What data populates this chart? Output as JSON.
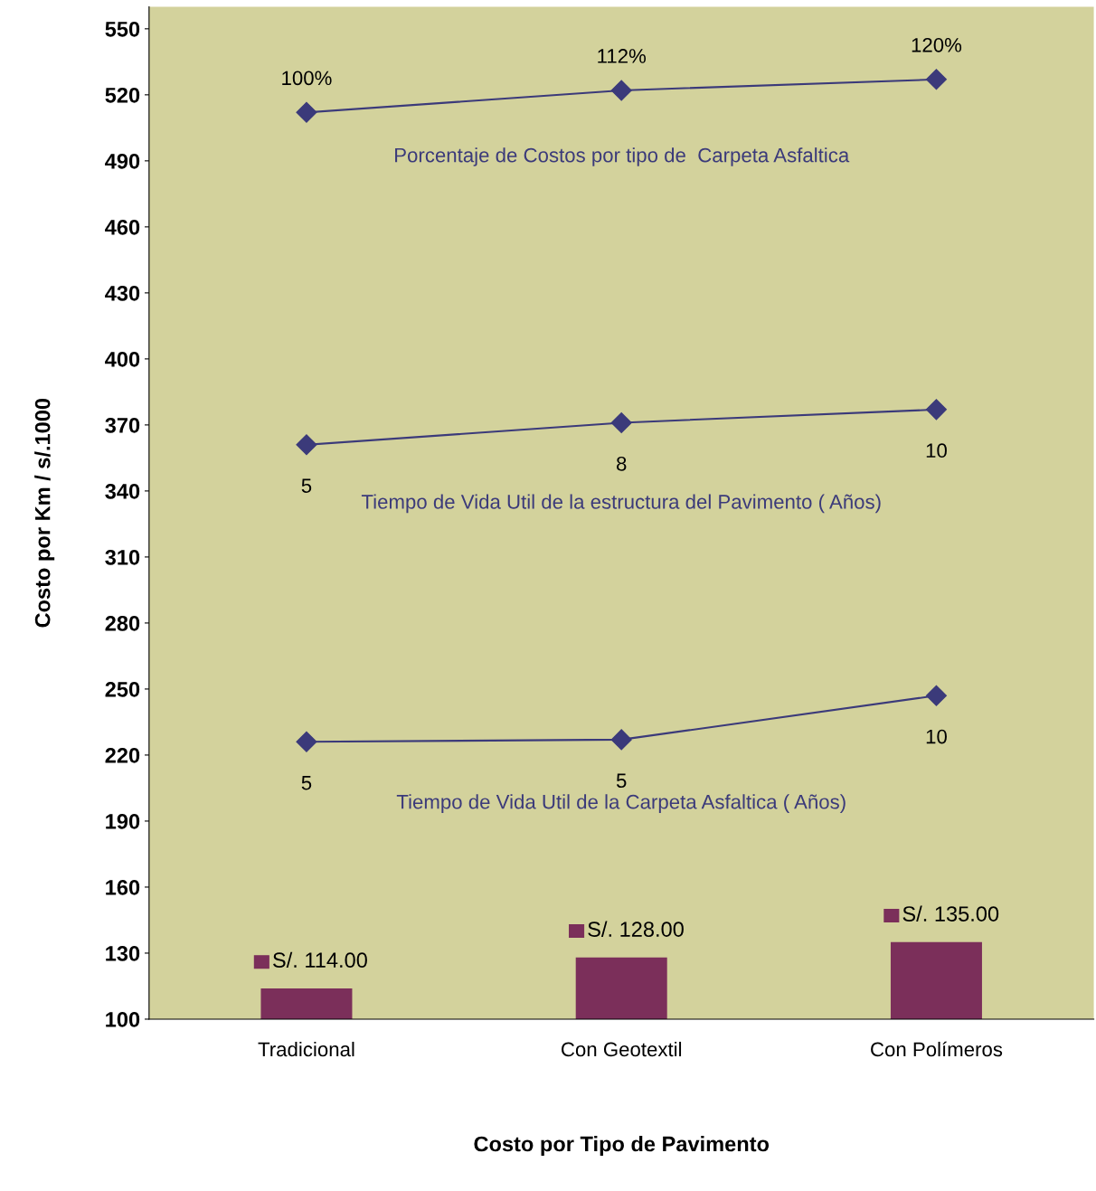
{
  "chart_data": {
    "type": "bar",
    "xlabel": "Costo por Tipo de Pavimento",
    "ylabel": "Costo por Km / s/.1000",
    "categories": [
      "Tradicional",
      "Con Geotextil",
      "Con Polímeros"
    ],
    "ylim": [
      100,
      560
    ],
    "yticks": [
      100,
      130,
      160,
      190,
      220,
      250,
      280,
      310,
      340,
      370,
      400,
      430,
      460,
      490,
      520,
      550
    ],
    "grid": false,
    "marker": "diamond",
    "line_style": "solid",
    "series": [
      {
        "color": "#7b2f5a",
        "values": [
          114,
          128,
          135
        ],
        "value_labels": [
          "S/. 114.00",
          "S/. 128.00",
          "S/. 135.00"
        ]
      },
      {
        "type": "line",
        "name": "Porcentaje de Costos por tipo de  Carpeta Asfaltica",
        "color": "#3b3a7a",
        "values": [
          512,
          522,
          527
        ]
      },
      {
        "type": "line",
        "name": "Tiempo de Vida Util de la estructura del Pavimento ( Años)",
        "color": "#3b3a7a",
        "values": [
          361,
          371,
          377
        ]
      },
      {
        "type": "line",
        "name": "Tiempo de Vida Util de la Carpeta Asfaltica ( Años)",
        "color": "#3b3a7a",
        "values": [
          226,
          227,
          247
        ]
      }
    ],
    "annotations": [
      {
        "text": "100%",
        "x": "Tradicional",
        "y": 512
      },
      {
        "text": "112%",
        "x": "Con Geotextil",
        "y": 522
      },
      {
        "text": "120%",
        "x": "Con Polímeros",
        "y": 527
      },
      {
        "text": "5",
        "x": "Tradicional",
        "y": 361
      },
      {
        "text": "8",
        "x": "Con Geotextil",
        "y": 371
      },
      {
        "text": "10",
        "x": "Con Polímeros",
        "y": 377
      },
      {
        "text": "5",
        "x": "Tradicional",
        "y": 226
      },
      {
        "text": "5",
        "x": "Con Geotextil",
        "y": 227
      },
      {
        "text": "10",
        "x": "Con Polímeros",
        "y": 247
      }
    ]
  }
}
